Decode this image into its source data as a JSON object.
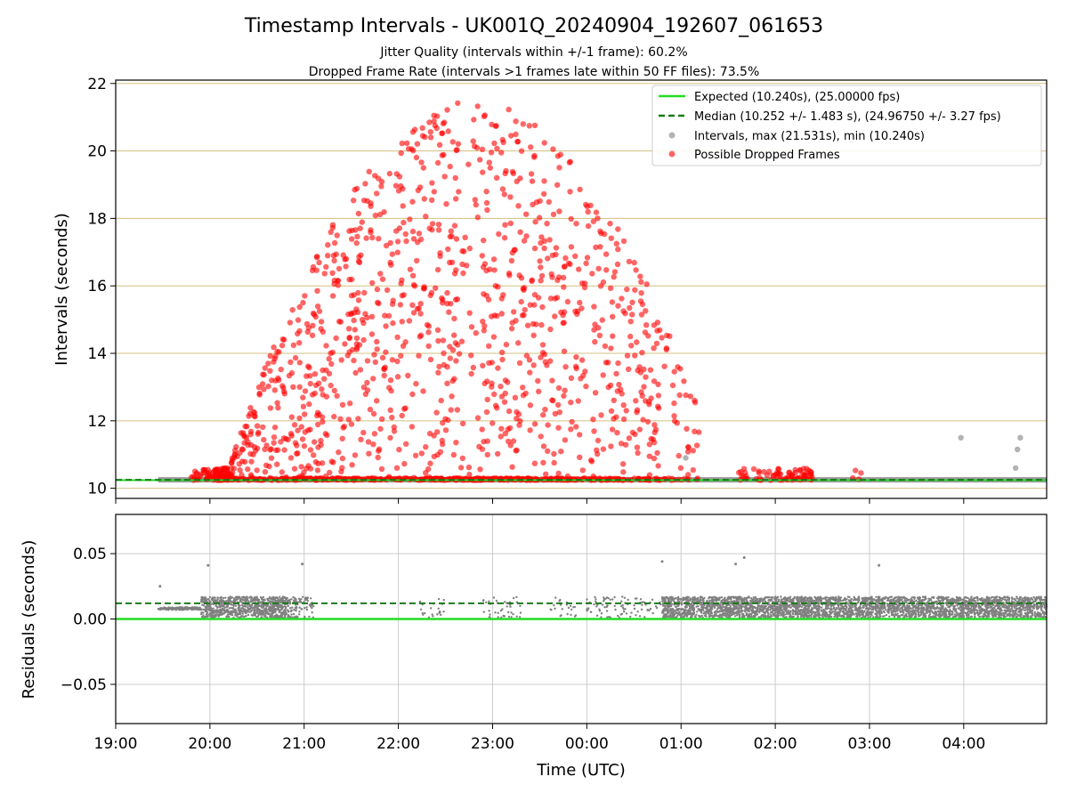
{
  "chart_data": [
    {
      "type": "scatter",
      "title": "Timestamp Intervals - UK001Q_20240904_192607_061653",
      "subtitles": [
        "Jitter Quality (intervals within +/-1 frame): 60.2%",
        "Dropped Frame Rate (intervals >1 frames late within 50 FF files): 73.5%"
      ],
      "xlabel": "",
      "ylabel": "Intervals (seconds)",
      "x_axis": {
        "start": "19:00",
        "end": "04:53",
        "tick_labels": [
          "19:00",
          "20:00",
          "21:00",
          "22:00",
          "23:00",
          "00:00",
          "01:00",
          "02:00",
          "03:00",
          "04:00"
        ],
        "tick_hours": [
          0,
          1,
          2,
          3,
          4,
          5,
          6,
          7,
          8,
          9
        ],
        "range_hours": [
          0,
          9.88
        ]
      },
      "ylim": [
        9.7,
        22.1
      ],
      "y_ticks": [
        10,
        12,
        14,
        16,
        18,
        20,
        22
      ],
      "grid": "horizontal, tan colored",
      "legend_position": "top-right",
      "legend": [
        "Expected (10.240s), (25.00000 fps)",
        "Median (10.252 +/- 1.483 s), (24.96750 +/- 3.27 fps)",
        "Intervals, max (21.531s), min (10.240s)",
        "Possible Dropped Frames"
      ],
      "expected_interval": 10.24,
      "median_interval": 10.252,
      "max_interval": 21.531,
      "min_interval": 10.24,
      "interval_line_span_hours": [
        0.45,
        9.88
      ],
      "series": [
        {
          "name": "Possible Dropped Frames",
          "clusters_hours_density": [
            [
              0.8,
              1.05,
              0.35
            ],
            [
              1.05,
              1.9,
              0.75
            ],
            [
              1.9,
              3.0,
              1.0
            ],
            [
              3.0,
              4.2,
              1.0
            ],
            [
              4.2,
              5.0,
              0.95
            ],
            [
              5.0,
              5.8,
              0.75
            ],
            [
              5.8,
              6.2,
              0.3
            ],
            [
              6.6,
              7.0,
              0.15
            ],
            [
              7.0,
              7.4,
              0.35
            ],
            [
              7.8,
              7.95,
              0.08
            ]
          ],
          "gray_outliers": [
            [
              6.05,
              10.9
            ],
            [
              8.97,
              11.5
            ],
            [
              9.55,
              10.6
            ],
            [
              9.57,
              11.15
            ],
            [
              9.6,
              11.5
            ]
          ]
        }
      ]
    },
    {
      "type": "scatter",
      "title": "",
      "xlabel": "Time (UTC)",
      "ylabel": "Residuals (seconds)",
      "x_axis": {
        "tick_labels": [
          "19:00",
          "20:00",
          "21:00",
          "22:00",
          "23:00",
          "00:00",
          "01:00",
          "02:00",
          "03:00",
          "04:00"
        ],
        "range_hours": [
          0,
          9.88
        ]
      },
      "ylim": [
        -0.08,
        0.08
      ],
      "y_ticks": [
        -0.05,
        0.0,
        0.05
      ],
      "y_tick_labels": [
        "−0.05",
        "0.00",
        "0.05"
      ],
      "grid": "both",
      "zero_line": 0.0,
      "median_residual": 0.012,
      "residual_segments_hours": [
        [
          0.45,
          0.9,
          0.35
        ],
        [
          0.9,
          1.85,
          1.0
        ],
        [
          1.85,
          2.1,
          0.35
        ],
        [
          3.2,
          3.5,
          0.08
        ],
        [
          3.9,
          4.3,
          0.12
        ],
        [
          4.6,
          4.9,
          0.08
        ],
        [
          5.0,
          5.8,
          0.12
        ],
        [
          5.8,
          9.88,
          1.0
        ]
      ],
      "outliers": [
        [
          0.47,
          0.025
        ],
        [
          0.98,
          0.041
        ],
        [
          1.98,
          0.042
        ],
        [
          5.8,
          0.044
        ],
        [
          6.58,
          0.042
        ],
        [
          6.67,
          0.047
        ],
        [
          8.1,
          0.041
        ]
      ]
    }
  ],
  "colors": {
    "expected": "#22dd22",
    "median": "#1a7a1a",
    "dropped": "#ff0000",
    "intervals": "#808080",
    "grid_top": "#d4c080",
    "grid_bottom": "#cccccc"
  }
}
